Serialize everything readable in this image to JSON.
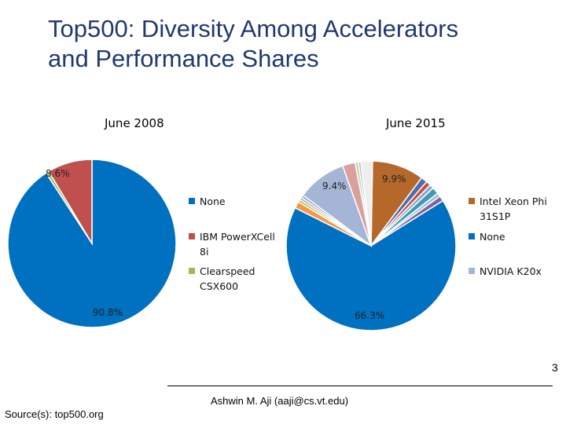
{
  "slide": {
    "title_line1": "Top500: Diversity Among Accelerators",
    "title_line2": "and Performance Shares",
    "page_number": "3",
    "author": "Ashwin M. Aji (aaji@cs.vt.edu)",
    "source": "Source(s): top500.org"
  },
  "chart_data": [
    {
      "type": "pie",
      "title": "June 2008",
      "slices": [
        {
          "name": "None",
          "value": 90.8,
          "color": "#0070c0",
          "label": "90.8%"
        },
        {
          "name": "Clearspeed CSX600",
          "value": 0.6,
          "color": "#9bbb59",
          "label": ""
        },
        {
          "name": "IBM PowerXCell 8i",
          "value": 8.6,
          "color": "#c0504d",
          "label": "8.6%"
        }
      ],
      "legend": [
        {
          "text": "None",
          "color": "#0070c0"
        },
        {
          "text": "IBM PowerXCell 8i",
          "color": "#c0504d"
        },
        {
          "text": "Clearspeed CSX600",
          "color": "#9bbb59"
        }
      ],
      "legend_placement": "right"
    },
    {
      "type": "pie",
      "title": "June 2015",
      "slices": [
        {
          "name": "Intel Xeon Phi 31S1P",
          "value": 9.9,
          "color": "#b5682a",
          "label": "9.9%"
        },
        {
          "value": 1.2,
          "color": "#4f6fa8"
        },
        {
          "value": 0.9,
          "color": "#c0504d"
        },
        {
          "value": 0.8,
          "color": "#8aa6c8"
        },
        {
          "value": 1.3,
          "color": "#3f9bb0"
        },
        {
          "value": 0.7,
          "color": "#9bbbd9"
        },
        {
          "value": 1.0,
          "color": "#8064a2"
        },
        {
          "name": "None",
          "value": 66.3,
          "color": "#0070c0",
          "label": "66.3%"
        },
        {
          "value": 1.3,
          "color": "#f79646"
        },
        {
          "value": 0.5,
          "color": "#9bbb59"
        },
        {
          "value": 0.5,
          "color": "#c6a0a0"
        },
        {
          "value": 0.5,
          "color": "#7fa0c8"
        },
        {
          "name": "NVIDIA K20x",
          "value": 9.4,
          "color": "#a5b5d6",
          "label": "9.4%"
        },
        {
          "value": 2.4,
          "color": "#d9a0a0"
        },
        {
          "value": 0.6,
          "color": "#c4d79b"
        },
        {
          "value": 0.5,
          "color": "#b0c4de"
        },
        {
          "value": 2.2,
          "color": "#eeeeee"
        }
      ],
      "legend": [
        {
          "text": "Intel Xeon Phi 31S1P",
          "color": "#b5682a"
        },
        {
          "text": "None",
          "color": "#0070c0"
        },
        {
          "text": "NVIDIA K20x",
          "color": "#a5b5d6"
        }
      ],
      "legend_placement": "right"
    }
  ]
}
